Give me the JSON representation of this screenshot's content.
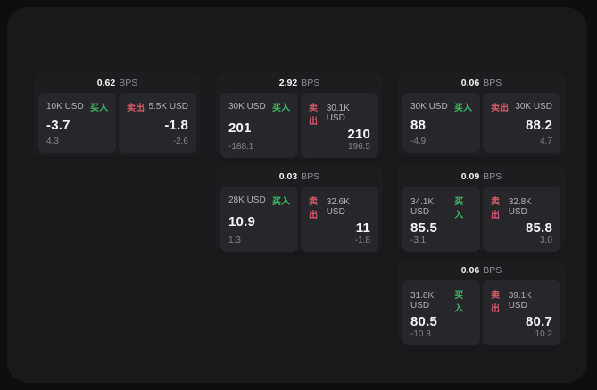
{
  "colors": {
    "page_bg": "#0e0e0f",
    "panel_bg": "#19191b",
    "card_bg": "#1d1d20",
    "tile_bg": "#27272b",
    "buy": "#3fbb68",
    "sell": "#d85a6a"
  },
  "labels": {
    "bps": "BPS",
    "buy": "买入",
    "sell": "卖出"
  },
  "cards": [
    {
      "bps": "0.62",
      "buy": {
        "amount": "10K USD",
        "value": "-3.7",
        "delta": "4.3"
      },
      "sell": {
        "amount": "5.5K USD",
        "value": "-1.8",
        "delta": "-2.6"
      }
    },
    {
      "bps": "2.92",
      "buy": {
        "amount": "30K USD",
        "value": "201",
        "delta": "-188.1"
      },
      "sell": {
        "amount": "30.1K USD",
        "value": "210",
        "delta": "196.5"
      }
    },
    {
      "bps": "0.06",
      "buy": {
        "amount": "30K USD",
        "value": "88",
        "delta": "-4.9"
      },
      "sell": {
        "amount": "30K USD",
        "value": "88.2",
        "delta": "4.7"
      }
    },
    {
      "bps": "0.03",
      "buy": {
        "amount": "28K USD",
        "value": "10.9",
        "delta": "1.3"
      },
      "sell": {
        "amount": "32.6K USD",
        "value": "11",
        "delta": "-1.8"
      }
    },
    {
      "bps": "0.09",
      "buy": {
        "amount": "34.1K USD",
        "value": "85.5",
        "delta": "-3.1"
      },
      "sell": {
        "amount": "32.8K USD",
        "value": "85.8",
        "delta": "3.0"
      }
    },
    {
      "bps": "0.06",
      "buy": {
        "amount": "31.8K USD",
        "value": "80.5",
        "delta": "-10.8"
      },
      "sell": {
        "amount": "39.1K USD",
        "value": "80.7",
        "delta": "10.2"
      }
    }
  ]
}
